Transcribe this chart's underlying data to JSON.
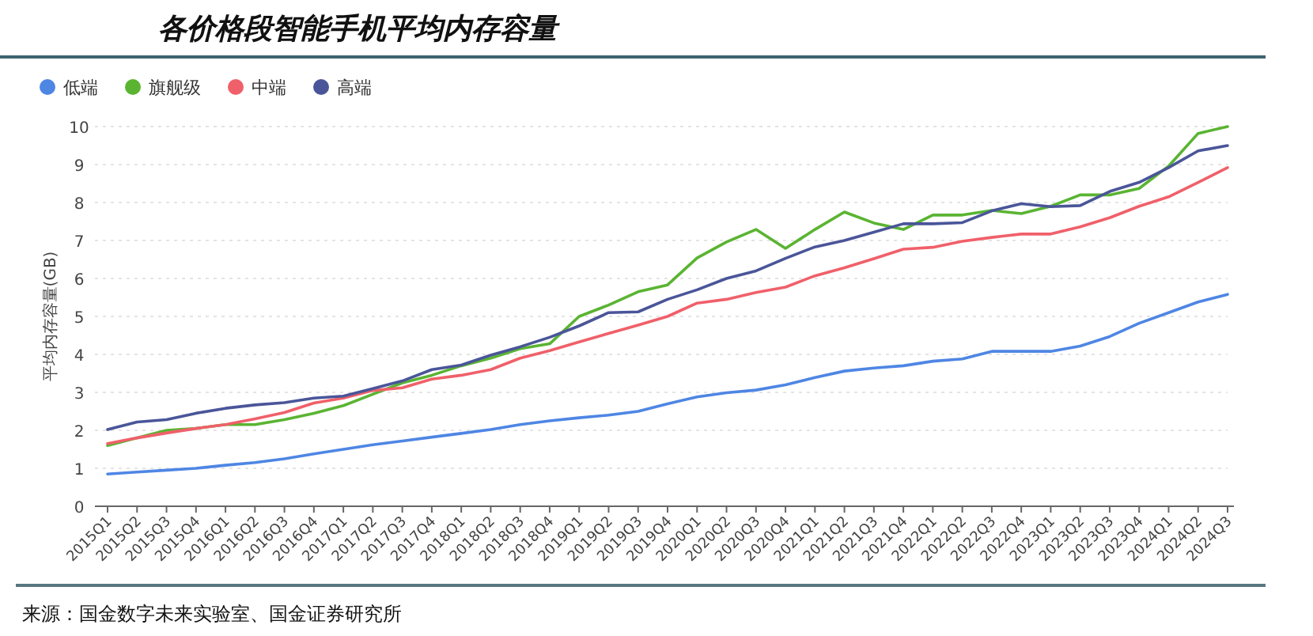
{
  "chart_data": {
    "type": "line",
    "title": "各价格段智能手机平均内存容量",
    "ylabel": "平均内存容量(GB)",
    "categories": [
      "2015Q1",
      "2015Q2",
      "2015Q3",
      "2015Q4",
      "2016Q1",
      "2016Q2",
      "2016Q3",
      "2016Q4",
      "2017Q1",
      "2017Q2",
      "2017Q3",
      "2017Q4",
      "2018Q1",
      "2018Q2",
      "2018Q3",
      "2018Q4",
      "2019Q1",
      "2019Q2",
      "2019Q3",
      "2019Q4",
      "2020Q1",
      "2020Q2",
      "2020Q3",
      "2020Q4",
      "2021Q1",
      "2021Q2",
      "2021Q3",
      "2021Q4",
      "2022Q1",
      "2022Q2",
      "2022Q3",
      "2022Q4",
      "2023Q1",
      "2023Q2",
      "2023Q3",
      "2023Q4",
      "2024Q1",
      "2024Q2",
      "2024Q3"
    ],
    "series": [
      {
        "name": "低端",
        "color": "#4e86e4",
        "values": [
          0.85,
          0.9,
          0.95,
          1.0,
          1.08,
          1.15,
          1.25,
          1.38,
          1.5,
          1.62,
          1.72,
          1.82,
          1.92,
          2.02,
          2.15,
          2.25,
          2.33,
          2.4,
          2.5,
          2.7,
          2.88,
          2.99,
          3.06,
          3.2,
          3.39,
          3.56,
          3.64,
          3.7,
          3.82,
          3.88,
          4.08,
          4.08,
          4.08,
          4.22,
          4.47,
          4.82,
          5.1,
          5.38,
          5.58
        ]
      },
      {
        "name": "旗舰级",
        "color": "#5ab432",
        "values": [
          1.6,
          1.8,
          2.0,
          2.05,
          2.15,
          2.15,
          2.28,
          2.45,
          2.65,
          2.95,
          3.25,
          3.45,
          3.7,
          3.9,
          4.15,
          4.28,
          5.0,
          5.3,
          5.65,
          5.83,
          6.54,
          6.96,
          7.29,
          6.79,
          7.29,
          7.75,
          7.46,
          7.29,
          7.67,
          7.67,
          7.79,
          7.71,
          7.9,
          8.2,
          8.2,
          8.37,
          8.96,
          9.82,
          10.0
        ]
      },
      {
        "name": "中端",
        "color": "#f0606a",
        "values": [
          1.65,
          1.8,
          1.93,
          2.05,
          2.15,
          2.3,
          2.47,
          2.72,
          2.85,
          3.05,
          3.12,
          3.35,
          3.45,
          3.6,
          3.9,
          4.1,
          4.33,
          4.55,
          4.77,
          5.0,
          5.35,
          5.45,
          5.63,
          5.77,
          6.07,
          6.28,
          6.52,
          6.77,
          6.82,
          6.98,
          7.08,
          7.17,
          7.17,
          7.36,
          7.6,
          7.9,
          8.15,
          8.53,
          8.92
        ]
      },
      {
        "name": "高端",
        "color": "#4a5599",
        "values": [
          2.02,
          2.22,
          2.28,
          2.45,
          2.58,
          2.67,
          2.73,
          2.85,
          2.9,
          3.1,
          3.3,
          3.6,
          3.72,
          3.98,
          4.2,
          4.45,
          4.75,
          5.1,
          5.12,
          5.45,
          5.7,
          6.0,
          6.2,
          6.53,
          6.83,
          7.0,
          7.22,
          7.44,
          7.44,
          7.47,
          7.78,
          7.97,
          7.89,
          7.92,
          8.29,
          8.53,
          8.92,
          9.36,
          9.5
        ]
      }
    ],
    "ylim": [
      0,
      10
    ],
    "yticks": [
      0,
      1,
      2,
      3,
      4,
      5,
      6,
      7,
      8,
      9,
      10
    ],
    "grid": "y",
    "legend": "top left",
    "marker": "none",
    "line_style": "solid",
    "annotations": [
      "来源：国金数字未来实验室、国金证券研究所"
    ]
  }
}
